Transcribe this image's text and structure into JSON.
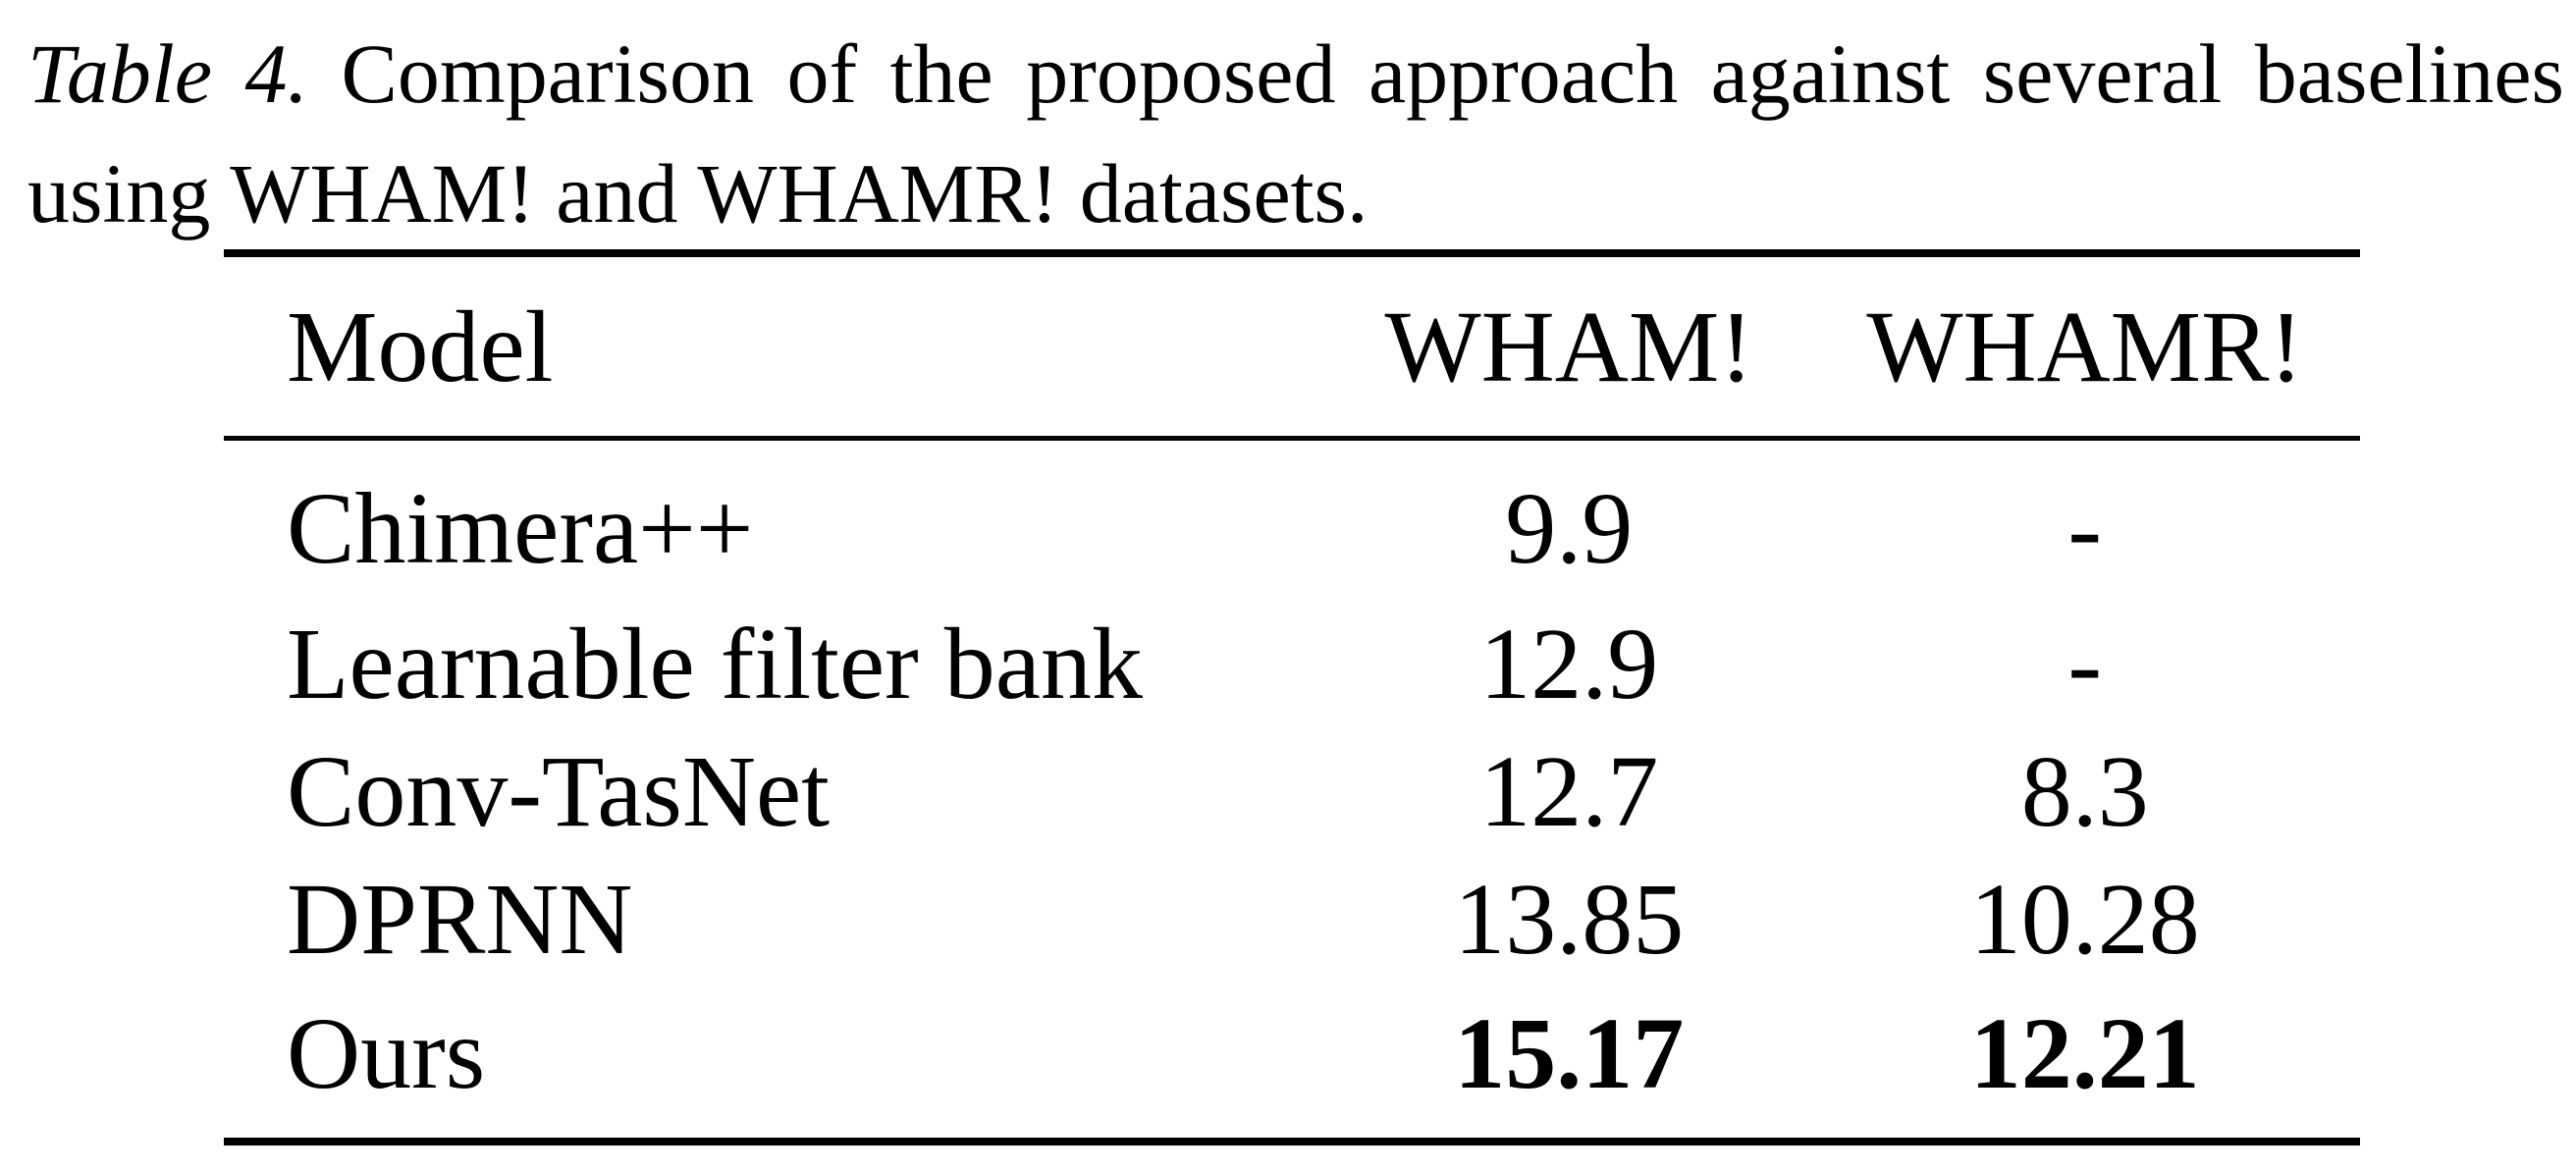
{
  "caption": {
    "label": "Table 4.",
    "text": "Comparison of the proposed approach against several baselines using WHAM! and WHAMR! datasets."
  },
  "table": {
    "headers": [
      "Model",
      "WHAM!",
      "WHAMR!"
    ],
    "rows": [
      {
        "model": "Chimera++",
        "wham": "9.9",
        "whamr": "-",
        "bold": false
      },
      {
        "model": "Learnable filter bank",
        "wham": "12.9",
        "whamr": "-",
        "bold": false
      },
      {
        "model": "Conv-TasNet",
        "wham": "12.7",
        "whamr": "8.3",
        "bold": false
      },
      {
        "model": "DPRNN",
        "wham": "13.85",
        "whamr": "10.28",
        "bold": false
      },
      {
        "model": "Ours",
        "wham": "15.17",
        "whamr": "12.21",
        "bold": true
      }
    ]
  }
}
